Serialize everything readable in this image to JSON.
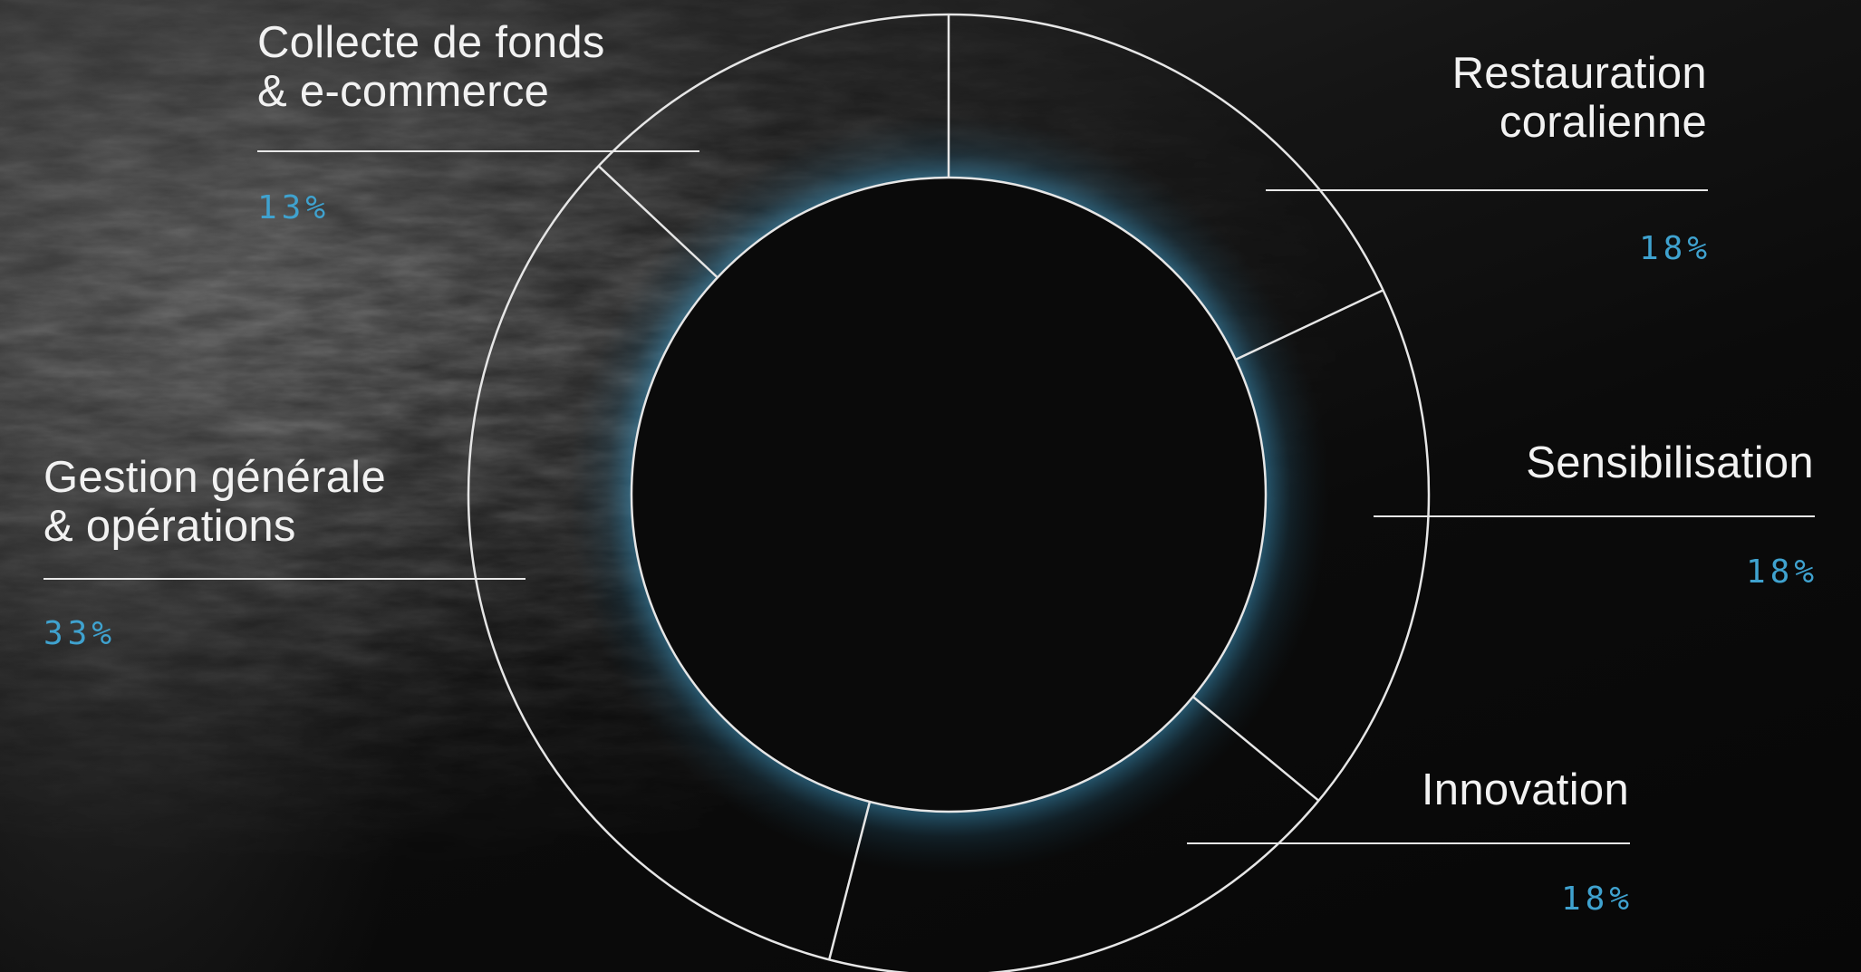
{
  "chart_data": {
    "type": "pie",
    "variant": "donut",
    "title": "",
    "legend": "none",
    "slices": [
      {
        "label": "Restauration coralienne",
        "value": 18,
        "value_label": "18%"
      },
      {
        "label": "Sensibilisation",
        "value": 18,
        "value_label": "18%"
      },
      {
        "label": "Innovation",
        "value": 18,
        "value_label": "18%"
      },
      {
        "label": "Gestion générale & opérations",
        "value": 33,
        "value_label": "33%"
      },
      {
        "label": "Collecte de fonds & e-commerce",
        "value": 13,
        "value_label": "13%"
      }
    ]
  },
  "labels": {
    "restauration": {
      "text": "Restauration\ncoralienne",
      "pct": "18%"
    },
    "sensibilisation": {
      "text": "Sensibilisation",
      "pct": "18%"
    },
    "innovation": {
      "text": "Innovation",
      "pct": "18%"
    },
    "gestion": {
      "text": "Gestion générale\n& opérations",
      "pct": "33%"
    },
    "collecte": {
      "text": "Collecte de fonds\n& e-commerce",
      "pct": "13%"
    }
  },
  "colors": {
    "ring_stroke": "#e6e6e6",
    "glow": "#3a8fb8",
    "accent": "#3fa2cf",
    "text": "#f2f2f2",
    "hole": "#0a0a0a"
  }
}
